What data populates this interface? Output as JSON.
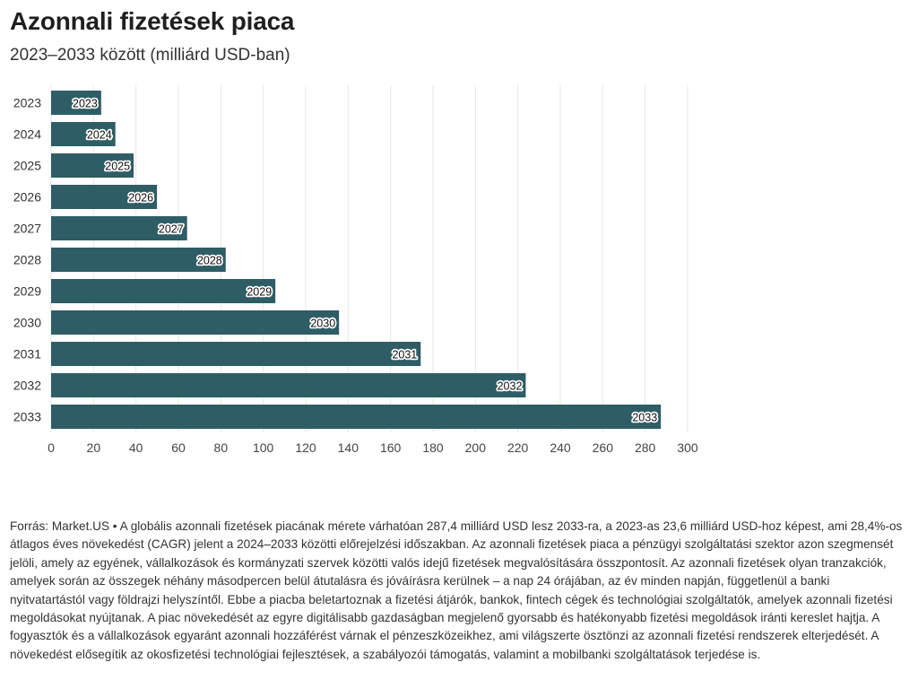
{
  "header": {
    "title": "Azonnali fizetések piaca",
    "subtitle": "2023–2033 között (milliárd USD-ban)"
  },
  "footer": {
    "source": "Forrás: Market.US • A globális azonnali fizetések piacának mérete várhatóan 287,4 milliárd USD lesz 2033-ra, a 2023-as 23,6 milliárd USD-hoz képest, ami 28,4%-os átlagos éves növekedést (CAGR) jelent a 2024–2033 közötti előrejelzési időszakban. Az azonnali fizetések piaca a pénzügyi szolgáltatási szektor azon szegmensét jelöli, amely az egyének, vállalkozások és kormányzati szervek közötti valós idejű fizetések megvalósítására összpontosít. Az azonnali fizetések olyan tranzakciók, amelyek során az összegek néhány másodpercen belül átutalásra és jóváírásra kerülnek – a nap 24 órájában, az év minden napján, függetlenül a banki nyitvatartástól vagy földrajzi helyszíntől. Ebbe a piacba beletartoznak a fizetési átjárók, bankok, fintech cégek és technológiai szolgáltatók, amelyek azonnali fizetési megoldásokat nyújtanak. A piac növekedését az egyre digitálisabb gazdaságban megjelenő gyorsabb és hatékonyabb fizetési megoldások iránti kereslet hajtja. A fogyasztók és a vállalkozások egyaránt azonnali hozzáférést várnak el pénzeszközeikhez, ami világszerte ösztönzi az azonnali fizetési rendszerek elterjedését. A növekedést elősegítik az okosfizetési technológiai fejlesztések, a szabályozói támogatás, valamint a mobilbanki szolgáltatások terjedése is."
  },
  "colors": {
    "bar": "#2e5d66",
    "grid": "#e6e6e6",
    "tick_text": "#444444"
  },
  "chart_data": {
    "type": "bar",
    "orientation": "horizontal",
    "categories": [
      "2023",
      "2024",
      "2025",
      "2026",
      "2027",
      "2028",
      "2029",
      "2030",
      "2031",
      "2032",
      "2033"
    ],
    "values": [
      23.6,
      30.3,
      38.9,
      49.9,
      64.1,
      82.3,
      105.7,
      135.7,
      174.2,
      223.7,
      287.4
    ],
    "data_labels": [
      "2023",
      "2024",
      "2025",
      "2026",
      "2027",
      "2028",
      "2029",
      "2030",
      "2031",
      "2032",
      "2033"
    ],
    "xlim": [
      0,
      300
    ],
    "xticks": [
      0,
      20,
      40,
      60,
      80,
      100,
      120,
      140,
      160,
      180,
      200,
      220,
      240,
      260,
      280,
      300
    ],
    "xlabel": "",
    "ylabel": "",
    "grid": true,
    "legend": "none"
  }
}
